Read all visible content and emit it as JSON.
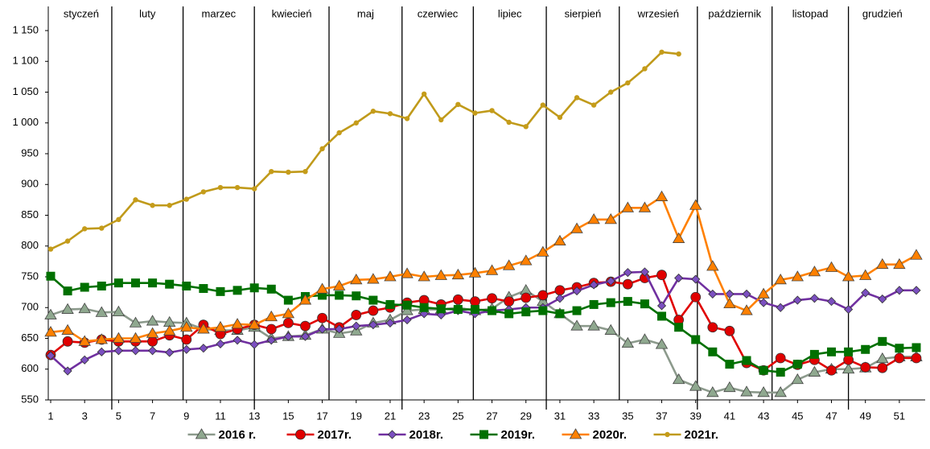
{
  "chart_data": {
    "type": "line",
    "months": [
      {
        "label": "styczeń",
        "start": 1
      },
      {
        "label": "luty",
        "start": 4.6
      },
      {
        "label": "marzec",
        "start": 8.8
      },
      {
        "label": "kwiecień",
        "start": 13
      },
      {
        "label": "maj",
        "start": 17.4
      },
      {
        "label": "czerwiec",
        "start": 21.7
      },
      {
        "label": "lipiec",
        "start": 25.9
      },
      {
        "label": "sierpień",
        "start": 30.2
      },
      {
        "label": "wrzesień",
        "start": 34.5
      },
      {
        "label": "październik",
        "start": 39.1
      },
      {
        "label": "listopad",
        "start": 43.5
      },
      {
        "label": "grudzień",
        "start": 48
      }
    ],
    "x": [
      1,
      2,
      3,
      4,
      5,
      6,
      7,
      8,
      9,
      10,
      11,
      12,
      13,
      14,
      15,
      16,
      17,
      18,
      19,
      20,
      21,
      22,
      23,
      24,
      25,
      26,
      27,
      28,
      29,
      30,
      31,
      32,
      33,
      34,
      35,
      36,
      37,
      38,
      39,
      40,
      41,
      42,
      43,
      44,
      45,
      46,
      47,
      48,
      49,
      50,
      51,
      52
    ],
    "xlim": [
      1,
      52
    ],
    "xticks": [
      1,
      3,
      5,
      7,
      9,
      11,
      13,
      15,
      17,
      19,
      21,
      23,
      25,
      27,
      29,
      31,
      33,
      35,
      37,
      39,
      41,
      43,
      45,
      47,
      49,
      51
    ],
    "ylim": [
      550,
      1150
    ],
    "yticks": [
      {
        "value": 550,
        "label": "550"
      },
      600,
      650,
      700,
      750,
      800,
      850,
      900,
      950,
      {
        "value": 1000,
        "label": "1 000"
      },
      {
        "value": 1050,
        "label": "1 050"
      },
      {
        "value": 1100,
        "label": "1 100"
      },
      {
        "value": 1150,
        "label": "1 150"
      }
    ],
    "grid": false,
    "legend": "bottom",
    "series": [
      {
        "name": "2016 r.",
        "color": "#8fa88f",
        "line_color": "#8c9a8c",
        "marker": "triangle",
        "values": [
          688,
          697,
          698,
          692,
          693,
          675,
          678,
          676,
          675,
          665,
          663,
          663,
          668,
          650,
          653,
          655,
          665,
          658,
          662,
          675,
          680,
          695,
          697,
          697,
          700,
          695,
          698,
          717,
          728,
          710,
          690,
          670,
          670,
          663,
          642,
          648,
          640,
          583,
          572,
          562,
          570,
          563,
          562,
          562,
          583,
          595,
          600,
          600,
          602,
          617,
          620,
          620
        ]
      },
      {
        "name": "2017r.",
        "color": "#e00000",
        "line_color": "#e00000",
        "marker": "circle",
        "values": [
          623,
          645,
          643,
          648,
          645,
          645,
          645,
          655,
          648,
          672,
          657,
          665,
          672,
          665,
          675,
          670,
          683,
          668,
          688,
          695,
          700,
          708,
          712,
          705,
          713,
          710,
          715,
          710,
          716,
          720,
          728,
          733,
          740,
          742,
          738,
          748,
          753,
          680,
          717,
          668,
          662,
          610,
          598,
          618,
          607,
          615,
          598,
          615,
          603,
          602,
          618,
          618
        ]
      },
      {
        "name": "2018r.",
        "color": "#7b4fc0",
        "line_color": "#7030a0",
        "marker": "diamond",
        "values": [
          622,
          597,
          615,
          628,
          630,
          630,
          630,
          627,
          632,
          634,
          641,
          647,
          640,
          647,
          653,
          653,
          665,
          665,
          670,
          672,
          675,
          680,
          690,
          688,
          695,
          690,
          695,
          697,
          700,
          700,
          715,
          727,
          737,
          743,
          757,
          758,
          703,
          748,
          746,
          722,
          722,
          722,
          708,
          700,
          712,
          715,
          710,
          697,
          724,
          714,
          728,
          728
        ]
      },
      {
        "name": "2019r.",
        "color": "#007000",
        "line_color": "#007000",
        "marker": "square",
        "values": [
          751,
          727,
          733,
          735,
          740,
          740,
          740,
          738,
          735,
          731,
          726,
          728,
          732,
          730,
          712,
          718,
          720,
          720,
          719,
          712,
          705,
          704,
          700,
          698,
          697,
          697,
          695,
          690,
          693,
          695,
          690,
          695,
          705,
          708,
          710,
          706,
          686,
          668,
          648,
          628,
          608,
          614,
          598,
          595,
          608,
          624,
          628,
          628,
          632,
          645,
          634,
          635
        ]
      },
      {
        "name": "2020r.",
        "color": "#ff8000",
        "line_color": "#ff8000",
        "marker": "triangle",
        "values": [
          660,
          663,
          645,
          648,
          650,
          650,
          658,
          662,
          668,
          665,
          668,
          673,
          672,
          685,
          690,
          712,
          730,
          735,
          745,
          746,
          750,
          755,
          750,
          752,
          753,
          756,
          760,
          768,
          776,
          790,
          808,
          828,
          843,
          843,
          862,
          862,
          880,
          812,
          866,
          767,
          706,
          695,
          722,
          745,
          750,
          758,
          765,
          750,
          752,
          770,
          770,
          785
        ]
      },
      {
        "name": "2021r.",
        "color": "#c59c1a",
        "line_color": "#c09a1a",
        "marker": "dot",
        "values": [
          795,
          808,
          828,
          829,
          843,
          875,
          866,
          866,
          876,
          888,
          895,
          895,
          893,
          921,
          920,
          921,
          958,
          984,
          1000,
          1019,
          1015,
          1007,
          1047,
          1005,
          1030,
          1016,
          1020,
          1001,
          994,
          1029,
          1009,
          1041,
          1029,
          1050,
          1065,
          1088,
          1115,
          1112,
          null,
          null,
          null,
          null,
          null,
          null,
          null,
          null,
          null,
          null,
          null,
          null,
          null,
          null
        ]
      }
    ]
  }
}
